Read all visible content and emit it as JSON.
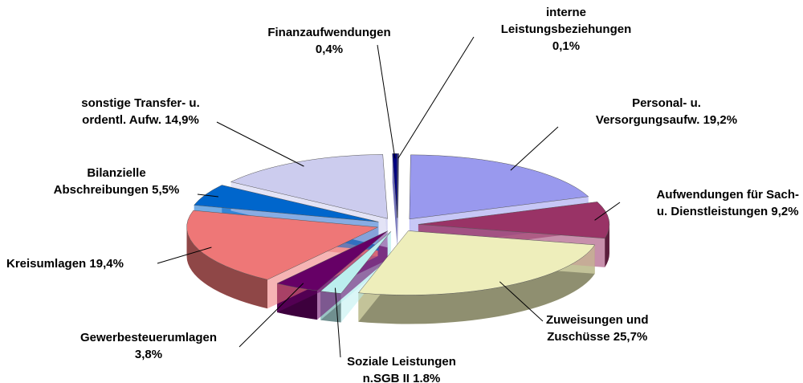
{
  "chart_data": {
    "type": "pie",
    "categories": [
      "interne\nLeistungsbeziehungen",
      "Personal- u.\nVersorgungsaufw.",
      "Aufwendungen für Sach-\nu. Dienstleistungen",
      "Zuweisungen und\nZuschüsse",
      "Soziale Leistungen\nn.SGB II",
      "Gewerbesteuerumlagen",
      "Kreisumlagen",
      "Bilanzielle\nAbschreibungen",
      "sonstige Transfer- u.\nordentl. Aufw.",
      "Finanzaufwendungen"
    ],
    "values": [
      0.1,
      19.2,
      9.2,
      25.7,
      1.8,
      3.8,
      19.4,
      5.5,
      14.9,
      0.4
    ],
    "value_labels": [
      "0,1%",
      "19,2%",
      "9,2%",
      "25,7%",
      "1.8%",
      "3,8%",
      "19,4%",
      "5,5%",
      "14,9%",
      "0,4%"
    ],
    "colors": [
      "#1a1a70",
      "#9999ee",
      "#993366",
      "#eeeebb",
      "#bbeeee",
      "#660066",
      "#ee7777",
      "#0066cc",
      "#ccccee",
      "#000080"
    ]
  }
}
